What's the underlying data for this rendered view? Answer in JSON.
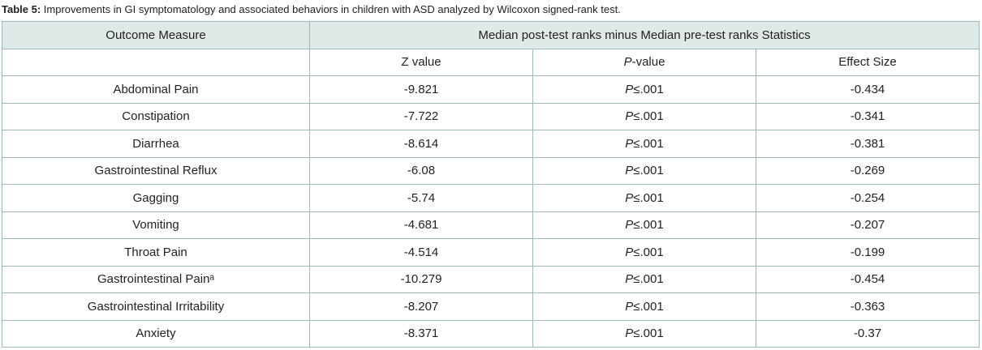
{
  "caption": {
    "label": "Table 5:",
    "text": " Improvements in GI symptomatology and associated behaviors in children with ASD analyzed by Wilcoxon signed-rank test."
  },
  "header": {
    "outcome": "Outcome Measure",
    "group": "Median post-test ranks minus Median pre-test ranks Statistics",
    "z": "Z value",
    "p_italic": "P",
    "p_rest": "-value",
    "effect": "Effect Size"
  },
  "rows": [
    {
      "measure": "Abdominal Pain",
      "z": "-9.821",
      "p": "P",
      "ple": "≤.001",
      "effect": "-0.434"
    },
    {
      "measure": "Constipation",
      "z": "-7.722",
      "p": "P",
      "ple": "≤.001",
      "effect": "-0.341"
    },
    {
      "measure": "Diarrhea",
      "z": "-8.614",
      "p": "P",
      "ple": "≤.001",
      "effect": "-0.381"
    },
    {
      "measure": "Gastrointestinal Reflux",
      "z": "-6.08",
      "p": "P",
      "ple": "≤.001",
      "effect": "-0.269"
    },
    {
      "measure": "Gagging",
      "z": "-5.74",
      "p": "P",
      "ple": "≤.001",
      "effect": "-0.254"
    },
    {
      "measure": "Vomiting",
      "z": "-4.681",
      "p": "P",
      "ple": "≤.001",
      "effect": "-0.207"
    },
    {
      "measure": "Throat Pain",
      "z": "-4.514",
      "p": "P",
      "ple": "≤.001",
      "effect": "-0.199"
    },
    {
      "measure": "Gastrointestinal Painᵃ",
      "z": "-10.279",
      "p": "P",
      "ple": "≤.001",
      "effect": "-0.454"
    },
    {
      "measure": "Gastrointestinal Irritability",
      "z": "-8.207",
      "p": "P",
      "ple": "≤.001",
      "effect": "-0.363"
    },
    {
      "measure": "Anxiety",
      "z": "-8.371",
      "p": "P",
      "ple": "≤.001",
      "effect": "-0.37"
    }
  ],
  "colors": {
    "header_bg": "#dfe9e8",
    "border": "#9fb8bd"
  }
}
